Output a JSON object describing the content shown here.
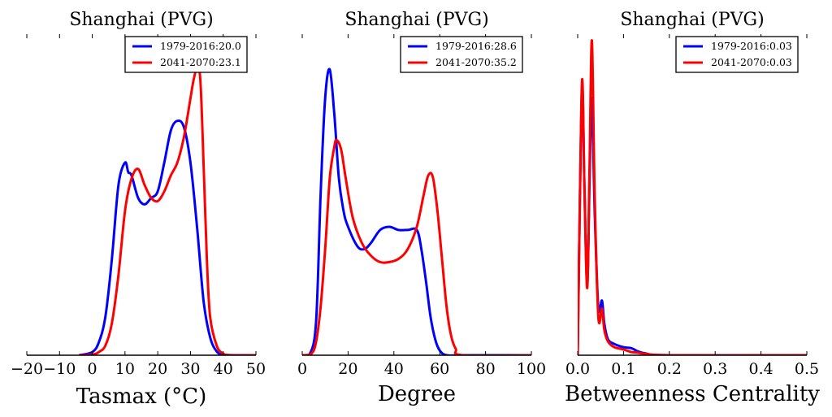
{
  "chart_data": [
    {
      "type": "line",
      "title": "Shanghai (PVG)",
      "xlabel": "Tasmax ($^\\circ$C)",
      "xlabel_display": "Tasmax (°C)",
      "ylabel": "",
      "xlim": [
        -20,
        50
      ],
      "ylim": [
        0,
        1
      ],
      "xticks": [
        -20,
        -10,
        0,
        10,
        20,
        30,
        40,
        50
      ],
      "xtick_labels": [
        "−20",
        "−10",
        "0",
        "10",
        "20",
        "30",
        "40",
        "50"
      ],
      "legend_placement": "top-right",
      "series": [
        {
          "name": "1979-2016:20.0",
          "color": "#0000ff",
          "x": [
            -4,
            0,
            2,
            4,
            6,
            8,
            10,
            11,
            12,
            14,
            16,
            18,
            20,
            22,
            24,
            26,
            28,
            30,
            32,
            34,
            36,
            38,
            40,
            44,
            50
          ],
          "y": [
            0,
            0.01,
            0.04,
            0.12,
            0.3,
            0.53,
            0.6,
            0.57,
            0.56,
            0.49,
            0.47,
            0.49,
            0.51,
            0.6,
            0.7,
            0.73,
            0.71,
            0.6,
            0.4,
            0.17,
            0.056,
            0.012,
            0.002,
            0,
            0
          ]
        },
        {
          "name": "2041-2070:23.1",
          "color": "#ff0000",
          "x": [
            -4,
            0,
            2,
            4,
            6,
            8,
            10,
            12,
            14,
            16,
            18,
            20,
            22,
            24,
            26,
            28,
            30,
            31,
            32,
            33,
            34,
            35,
            36,
            38,
            40,
            42,
            50
          ],
          "y": [
            0,
            0.002,
            0.01,
            0.03,
            0.1,
            0.25,
            0.45,
            0.55,
            0.58,
            0.53,
            0.49,
            0.48,
            0.51,
            0.56,
            0.6,
            0.68,
            0.8,
            0.86,
            0.89,
            0.86,
            0.6,
            0.3,
            0.12,
            0.03,
            0.005,
            0,
            0
          ]
        }
      ]
    },
    {
      "type": "line",
      "title": "Shanghai (PVG)",
      "xlabel": "Degree",
      "xlabel_display": "Degree",
      "ylabel": "",
      "xlim": [
        0,
        100
      ],
      "ylim": [
        0,
        1
      ],
      "xticks": [
        0,
        20,
        40,
        60,
        80,
        100
      ],
      "xtick_labels": [
        "0",
        "20",
        "40",
        "60",
        "80",
        "100"
      ],
      "legend_placement": "top-right",
      "series": [
        {
          "name": "1979-2016:28.6",
          "color": "#0000ff",
          "x": [
            0,
            3,
            6,
            8,
            10,
            12,
            14,
            16,
            18,
            20,
            24,
            27,
            30,
            34,
            38,
            42,
            46,
            50,
            52,
            54,
            56,
            58,
            60,
            63,
            70,
            100
          ],
          "y": [
            0,
            0,
            0.1,
            0.5,
            0.8,
            0.89,
            0.75,
            0.55,
            0.45,
            0.4,
            0.34,
            0.33,
            0.35,
            0.39,
            0.4,
            0.39,
            0.39,
            0.39,
            0.33,
            0.23,
            0.12,
            0.05,
            0.015,
            0,
            0,
            0
          ]
        },
        {
          "name": "2041-2070:35.2",
          "color": "#ff0000",
          "x": [
            0,
            4,
            6,
            8,
            10,
            12,
            14,
            15,
            17,
            19,
            22,
            26,
            30,
            34,
            38,
            42,
            46,
            50,
            53,
            55,
            57,
            59,
            61,
            63,
            65,
            67,
            70,
            100
          ],
          "y": [
            0,
            0.005,
            0.04,
            0.15,
            0.33,
            0.55,
            0.65,
            0.67,
            0.64,
            0.55,
            0.43,
            0.35,
            0.31,
            0.29,
            0.29,
            0.3,
            0.33,
            0.4,
            0.5,
            0.56,
            0.555,
            0.45,
            0.3,
            0.15,
            0.06,
            0.02,
            0,
            0
          ]
        }
      ]
    },
    {
      "type": "line",
      "title": "Shanghai (PVG)",
      "xlabel": "Betweenness Centrality",
      "xlabel_display": "Betweenness Centrality",
      "ylabel": "",
      "xlim": [
        0,
        0.5
      ],
      "ylim": [
        0,
        1
      ],
      "xticks": [
        0,
        0.1,
        0.2,
        0.3,
        0.4,
        0.5
      ],
      "xtick_labels": [
        "0.0",
        "0.1",
        "0.2",
        "0.3",
        "0.4",
        "0.5"
      ],
      "legend_placement": "top-right",
      "series": [
        {
          "name": "1979-2016:0.03",
          "color": "#0000ff",
          "x": [
            0,
            0.005,
            0.01,
            0.015,
            0.021,
            0.026,
            0.031,
            0.037,
            0.045,
            0.053,
            0.058,
            0.066,
            0.08,
            0.1,
            0.117,
            0.13,
            0.15,
            0.2,
            0.5
          ],
          "y": [
            0,
            0.5,
            0.84,
            0.5,
            0.22,
            0.55,
            0.8,
            0.45,
            0.15,
            0.17,
            0.1,
            0.05,
            0.035,
            0.025,
            0.022,
            0.013,
            0.005,
            0,
            0
          ]
        },
        {
          "name": "2041-2070:0.03",
          "color": "#ff0000",
          "x": [
            0,
            0.005,
            0.01,
            0.015,
            0.021,
            0.026,
            0.031,
            0.037,
            0.045,
            0.053,
            0.058,
            0.066,
            0.08,
            0.1,
            0.117,
            0.13,
            0.15,
            0.2,
            0.5
          ],
          "y": [
            0,
            0.5,
            0.86,
            0.5,
            0.21,
            0.6,
            0.98,
            0.5,
            0.12,
            0.145,
            0.08,
            0.043,
            0.025,
            0.018,
            0.01,
            0.008,
            0.004,
            0,
            0
          ]
        }
      ]
    }
  ]
}
